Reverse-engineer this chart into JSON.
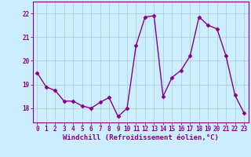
{
  "x": [
    0,
    1,
    2,
    3,
    4,
    5,
    6,
    7,
    8,
    9,
    10,
    11,
    12,
    13,
    14,
    15,
    16,
    17,
    18,
    19,
    20,
    21,
    22,
    23
  ],
  "y": [
    19.5,
    18.9,
    18.75,
    18.3,
    18.3,
    18.1,
    18.0,
    18.25,
    18.45,
    17.65,
    18.0,
    20.65,
    21.85,
    21.9,
    18.5,
    19.3,
    19.6,
    20.2,
    21.85,
    21.5,
    21.35,
    20.2,
    18.55,
    17.8
  ],
  "line_color": "#880088",
  "marker": "D",
  "marker_size": 2.5,
  "linewidth": 1.0,
  "bg_color": "#cceeff",
  "grid_color": "#aacccc",
  "axis_color": "#880088",
  "tick_color": "#880088",
  "xlabel": "Windchill (Refroidissement éolien,°C)",
  "xlabel_fontsize": 6.5,
  "tick_fontsize": 5.5,
  "ytick_labels": [
    18,
    19,
    20,
    21,
    22
  ],
  "ylim": [
    17.4,
    22.5
  ],
  "xlim": [
    -0.5,
    23.5
  ]
}
